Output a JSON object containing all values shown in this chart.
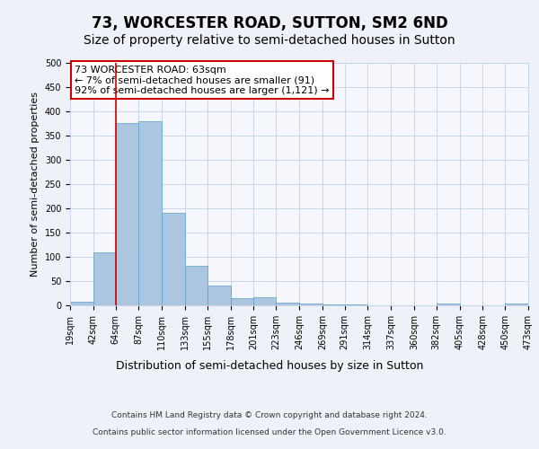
{
  "title": "73, WORCESTER ROAD, SUTTON, SM2 6ND",
  "subtitle": "Size of property relative to semi-detached houses in Sutton",
  "xlabel": "Distribution of semi-detached houses by size in Sutton",
  "ylabel": "Number of semi-detached properties",
  "annotation_line1": "73 WORCESTER ROAD: 63sqm",
  "annotation_line2": "← 7% of semi-detached houses are smaller (91)",
  "annotation_line3": "92% of semi-detached houses are larger (1,121) →",
  "footer_line1": "Contains HM Land Registry data © Crown copyright and database right 2024.",
  "footer_line2": "Contains public sector information licensed under the Open Government Licence v3.0.",
  "bar_left_edges": [
    19,
    42,
    64,
    87,
    110,
    133,
    155,
    178,
    201,
    223,
    246,
    269,
    291,
    314,
    337,
    360,
    382,
    405,
    428,
    450
  ],
  "bar_widths": [
    23,
    22,
    23,
    23,
    23,
    22,
    23,
    23,
    22,
    23,
    23,
    22,
    23,
    23,
    23,
    22,
    23,
    23,
    22,
    23
  ],
  "bar_heights": [
    7,
    110,
    375,
    380,
    190,
    82,
    40,
    15,
    16,
    6,
    3,
    1,
    1,
    0,
    0,
    0,
    4,
    0,
    0,
    3
  ],
  "tick_labels": [
    "19sqm",
    "42sqm",
    "64sqm",
    "87sqm",
    "110sqm",
    "133sqm",
    "155sqm",
    "178sqm",
    "201sqm",
    "223sqm",
    "246sqm",
    "269sqm",
    "291sqm",
    "314sqm",
    "337sqm",
    "360sqm",
    "382sqm",
    "405sqm",
    "428sqm",
    "450sqm",
    "473sqm"
  ],
  "bar_color": "#adc6e0",
  "bar_edge_color": "#5a9ec9",
  "vline_x": 64,
  "vline_color": "#cc0000",
  "ylim": [
    0,
    500
  ],
  "yticks": [
    0,
    50,
    100,
    150,
    200,
    250,
    300,
    350,
    400,
    450,
    500
  ],
  "annotation_box_color": "#ffffff",
  "annotation_box_edge": "#cc0000",
  "bg_color": "#eef2f8",
  "plot_bg_color": "#f5f7fc",
  "grid_color": "#c8d4e8",
  "title_fontsize": 12,
  "subtitle_fontsize": 10,
  "xlabel_fontsize": 9,
  "ylabel_fontsize": 8,
  "tick_fontsize": 7,
  "annotation_fontsize": 8,
  "footer_fontsize": 6.5
}
